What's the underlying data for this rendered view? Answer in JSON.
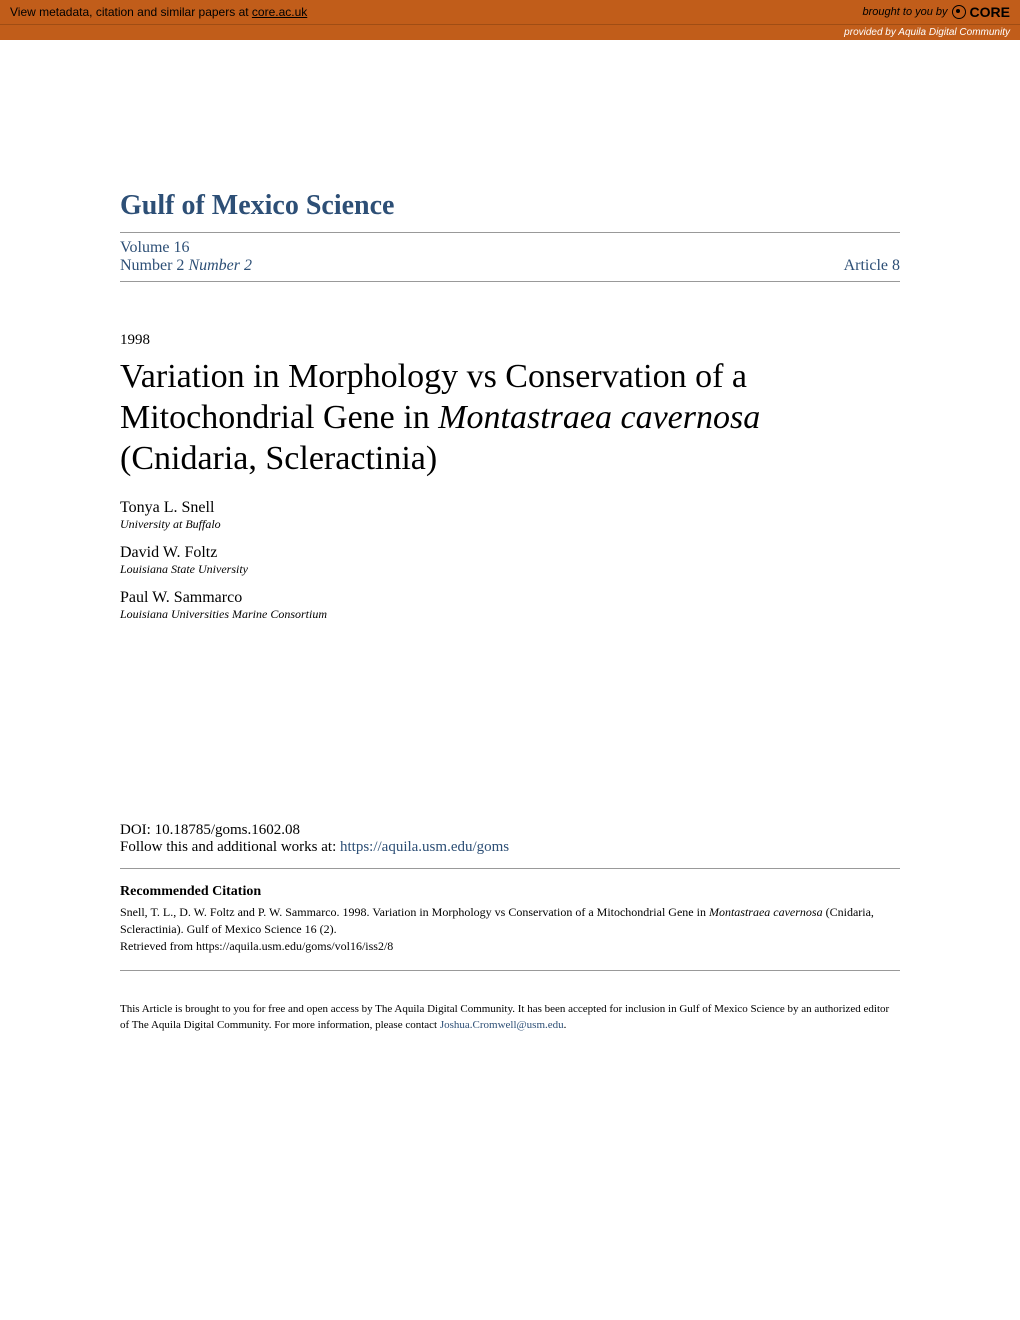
{
  "banner": {
    "metadata_text_prefix": "View metadata, citation and similar papers at ",
    "metadata_link": "core.ac.uk",
    "brought_by": "brought to you by",
    "core_label": "CORE",
    "provided_by_prefix": "provided by ",
    "provided_by": "Aquila Digital Community"
  },
  "journal": {
    "title": "Gulf of Mexico Science",
    "volume_label": "Volume 16",
    "number_label": "Number 2",
    "number_italic": "Number 2",
    "article_label": "Article 8"
  },
  "article": {
    "year": "1998",
    "title_part1": "Variation in Morphology vs Conservation of a Mitochondrial Gene in ",
    "title_italic": "Montastraea cavernosa",
    "title_part2": " (Cnidaria, Scleractinia)"
  },
  "authors": [
    {
      "name": "Tonya L. Snell",
      "affiliation": "University at Buffalo"
    },
    {
      "name": "David W. Foltz",
      "affiliation": "Louisiana State University"
    },
    {
      "name": "Paul W. Sammarco",
      "affiliation": "Louisiana Universities Marine Consortium"
    }
  ],
  "doi": {
    "label": "DOI: 10.18785/goms.1602.08",
    "follow_text": "Follow this and additional works at: ",
    "follow_link": "https://aquila.usm.edu/goms"
  },
  "citation": {
    "heading": "Recommended Citation",
    "text_part1": "Snell, T. L., D. W. Foltz and P. W. Sammarco. 1998. Variation in Morphology vs Conservation of a Mitochondrial Gene in ",
    "text_italic": "Montastraea cavernosa",
    "text_part2": " (Cnidaria, Scleractinia). Gulf of Mexico Science 16 (2).",
    "retrieved": "Retrieved from https://aquila.usm.edu/goms/vol16/iss2/8"
  },
  "footer": {
    "text_part1": "This Article is brought to you for free and open access by The Aquila Digital Community. It has been accepted for inclusion in Gulf of Mexico Science by an authorized editor of The Aquila Digital Community. For more information, please contact ",
    "email": "Joshua.Cromwell@usm.edu",
    "text_part2": "."
  },
  "colors": {
    "banner_bg": "#c15d1a",
    "link_color": "#2d4f76",
    "border_color": "#999999",
    "text_black": "#000000",
    "white": "#ffffff"
  },
  "typography": {
    "journal_title_size": 28,
    "article_title_size": 34,
    "body_size": 15,
    "small_size": 12,
    "footer_size": 11
  }
}
